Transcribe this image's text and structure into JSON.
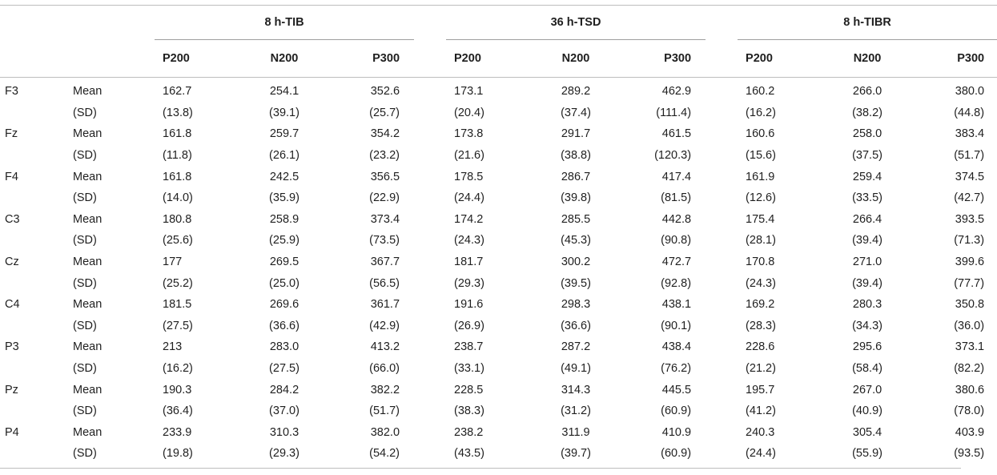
{
  "table": {
    "groups": [
      "8 h-TIB",
      "36 h-TSD",
      "8 h-TIBR"
    ],
    "components": [
      "P200",
      "N200",
      "P300"
    ],
    "rows": [
      {
        "electrode": "F3",
        "mean": [
          "162.7",
          "254.1",
          "352.6",
          "173.1",
          "289.2",
          "462.9",
          "160.2",
          "266.0",
          "380.0"
        ],
        "sd": [
          "(13.8)",
          "(39.1)",
          "(25.7)",
          "(20.4)",
          "(37.4)",
          "(111.4)",
          "(16.2)",
          "(38.2)",
          "(44.8)"
        ]
      },
      {
        "electrode": "Fz",
        "mean": [
          "161.8",
          "259.7",
          "354.2",
          "173.8",
          "291.7",
          "461.5",
          "160.6",
          "258.0",
          "383.4"
        ],
        "sd": [
          "(11.8)",
          "(26.1)",
          "(23.2)",
          "(21.6)",
          "(38.8)",
          "(120.3)",
          "(15.6)",
          "(37.5)",
          "(51.7)"
        ]
      },
      {
        "electrode": "F4",
        "mean": [
          "161.8",
          "242.5",
          "356.5",
          "178.5",
          "286.7",
          "417.4",
          "161.9",
          "259.4",
          "374.5"
        ],
        "sd": [
          "(14.0)",
          "(35.9)",
          "(22.9)",
          "(24.4)",
          "(39.8)",
          "(81.5)",
          "(12.6)",
          "(33.5)",
          "(42.7)"
        ]
      },
      {
        "electrode": "C3",
        "mean": [
          "180.8",
          "258.9",
          "373.4",
          "174.2",
          "285.5",
          "442.8",
          "175.4",
          "266.4",
          "393.5"
        ],
        "sd": [
          "(25.6)",
          "(25.9)",
          "(73.5)",
          "(24.3)",
          "(45.3)",
          "(90.8)",
          "(28.1)",
          "(39.4)",
          "(71.3)"
        ]
      },
      {
        "electrode": "Cz",
        "mean": [
          "177",
          "269.5",
          "367.7",
          "181.7",
          "300.2",
          "472.7",
          "170.8",
          "271.0",
          "399.6"
        ],
        "sd": [
          "(25.2)",
          "(25.0)",
          "(56.5)",
          "(29.3)",
          "(39.5)",
          "(92.8)",
          "(24.3)",
          "(39.4)",
          "(77.7)"
        ]
      },
      {
        "electrode": "C4",
        "mean": [
          "181.5",
          "269.6",
          "361.7",
          "191.6",
          "298.3",
          "438.1",
          "169.2",
          "280.3",
          "350.8"
        ],
        "sd": [
          "(27.5)",
          "(36.6)",
          "(42.9)",
          "(26.9)",
          "(36.6)",
          "(90.1)",
          "(28.3)",
          "(34.3)",
          "(36.0)"
        ]
      },
      {
        "electrode": "P3",
        "mean": [
          "213",
          "283.0",
          "413.2",
          "238.7",
          "287.2",
          "438.4",
          "228.6",
          "295.6",
          "373.1"
        ],
        "sd": [
          "(16.2)",
          "(27.5)",
          "(66.0)",
          "(33.1)",
          "(49.1)",
          "(76.2)",
          "(21.2)",
          "(58.4)",
          "(82.2)"
        ]
      },
      {
        "electrode": "Pz",
        "mean": [
          "190.3",
          "284.2",
          "382.2",
          "228.5",
          "314.3",
          "445.5",
          "195.7",
          "267.0",
          "380.6"
        ],
        "sd": [
          "(36.4)",
          "(37.0)",
          "(51.7)",
          "(38.3)",
          "(31.2)",
          "(60.9)",
          "(41.2)",
          "(40.9)",
          "(78.0)"
        ]
      },
      {
        "electrode": "P4",
        "mean": [
          "233.9",
          "310.3",
          "382.0",
          "238.2",
          "311.9",
          "410.9",
          "240.3",
          "305.4",
          "403.9"
        ],
        "sd": [
          "(19.8)",
          "(29.3)",
          "(54.2)",
          "(43.5)",
          "(39.7)",
          "(60.9)",
          "(24.4)",
          "(55.9)",
          "(93.5)"
        ]
      }
    ],
    "mean_label": "Mean",
    "sd_label": "(SD)"
  }
}
